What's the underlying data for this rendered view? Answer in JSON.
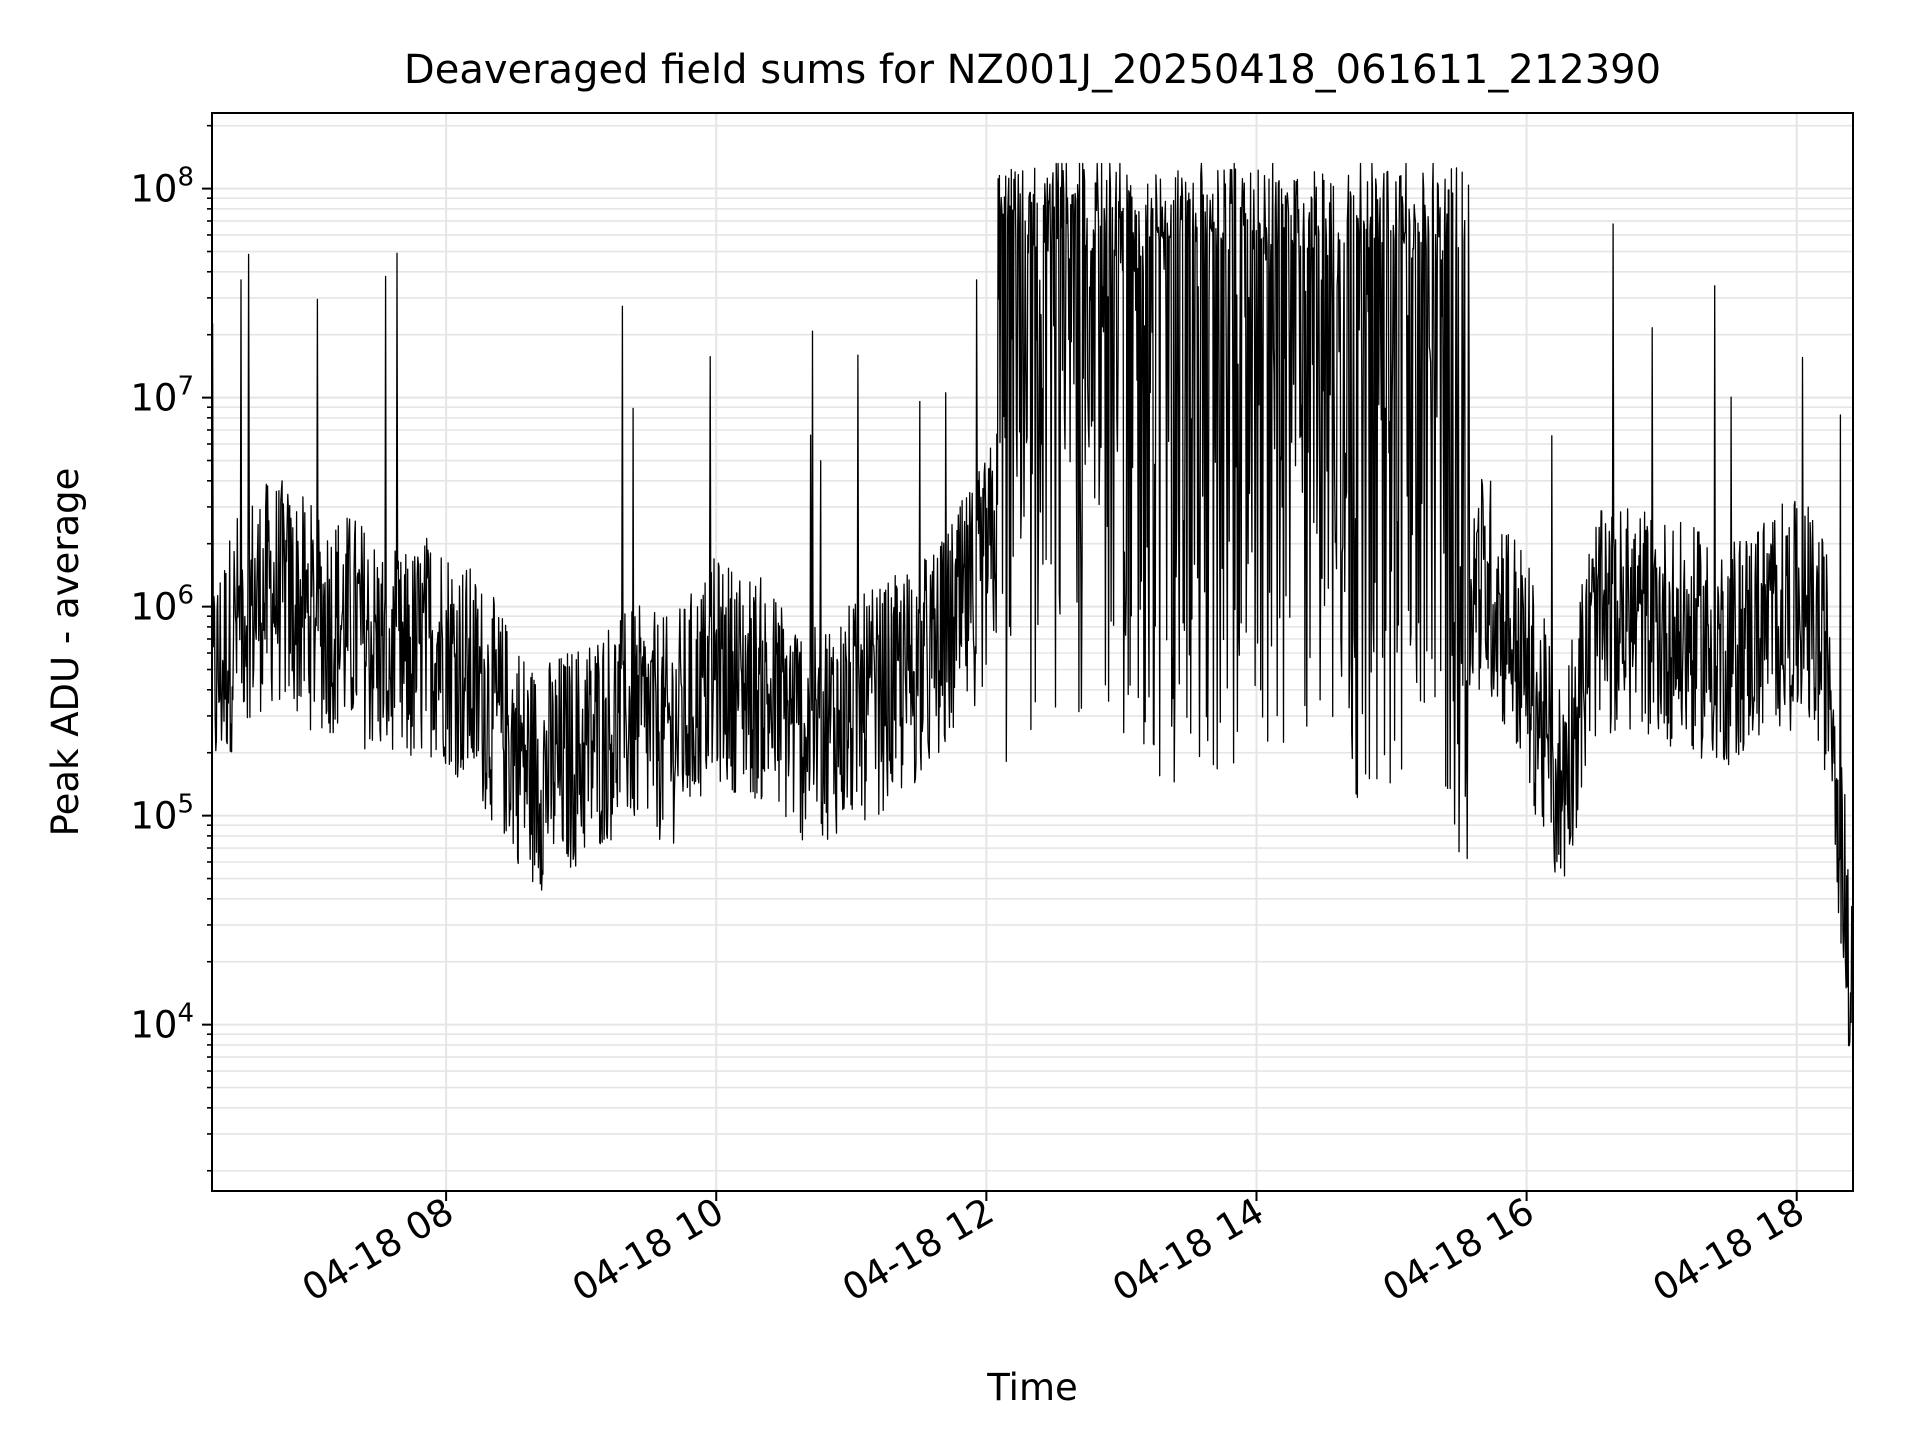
{
  "chart_data": {
    "type": "line",
    "title": "Deaveraged field sums for NZ001J_20250418_061611_212390",
    "xlabel": "Time",
    "ylabel": "Peak ADU - average",
    "yscale": "log",
    "ylim": [
      1600,
      230000000
    ],
    "xlim": [
      "2025-04-18 06:16",
      "2025-04-18 18:25"
    ],
    "x_ticks": [
      "04-18 08",
      "04-18 10",
      "04-18 12",
      "04-18 14",
      "04-18 16",
      "04-18 18"
    ],
    "y_ticks": [
      {
        "base": "10",
        "exp": "4",
        "value": 10000
      },
      {
        "base": "10",
        "exp": "5",
        "value": 100000
      },
      {
        "base": "10",
        "exp": "6",
        "value": 1000000
      },
      {
        "base": "10",
        "exp": "7",
        "value": 10000000
      },
      {
        "base": "10",
        "exp": "8",
        "value": 100000000
      }
    ],
    "grid": true,
    "line_color": "#000000",
    "grid_color": "#e5e5e5",
    "series": [
      {
        "x": [
          "2025-04-18 06:16",
          "2025-04-18 06:30",
          "2025-04-18 06:45",
          "2025-04-18 07:00",
          "2025-04-18 07:20",
          "2025-04-18 07:40",
          "2025-04-18 07:55",
          "2025-04-18 08:15",
          "2025-04-18 08:40",
          "2025-04-18 09:00",
          "2025-04-18 09:20",
          "2025-04-18 09:40",
          "2025-04-18 10:00",
          "2025-04-18 10:20",
          "2025-04-18 10:40",
          "2025-04-18 11:00",
          "2025-04-18 11:20",
          "2025-04-18 11:40",
          "2025-04-18 12:00",
          "2025-04-18 12:15",
          "2025-04-18 12:30",
          "2025-04-18 12:45",
          "2025-04-18 13:00",
          "2025-04-18 13:15",
          "2025-04-18 13:30",
          "2025-04-18 13:45",
          "2025-04-18 14:00",
          "2025-04-18 14:15",
          "2025-04-18 14:30",
          "2025-04-18 14:45",
          "2025-04-18 15:00",
          "2025-04-18 15:15",
          "2025-04-18 15:30",
          "2025-04-18 15:45",
          "2025-04-18 16:00",
          "2025-04-18 16:15",
          "2025-04-18 16:30",
          "2025-04-18 16:50",
          "2025-04-18 17:10",
          "2025-04-18 17:30",
          "2025-04-18 17:50",
          "2025-04-18 18:05",
          "2025-04-18 18:15",
          "2025-04-18 18:25"
        ],
        "y": [
          400000,
          1000000,
          1200000,
          900000,
          800000,
          500000,
          700000,
          400000,
          150000,
          200000,
          300000,
          250000,
          500000,
          400000,
          250000,
          300000,
          400000,
          600000,
          1500000,
          5000000,
          8000000,
          7000000,
          6000000,
          3000000,
          4000000,
          3000000,
          3500000,
          5000000,
          4000000,
          3000000,
          3500000,
          4000000,
          1500000,
          1200000,
          500000,
          130000,
          800000,
          900000,
          700000,
          600000,
          900000,
          900000,
          500000,
          9000
        ]
      }
    ]
  }
}
